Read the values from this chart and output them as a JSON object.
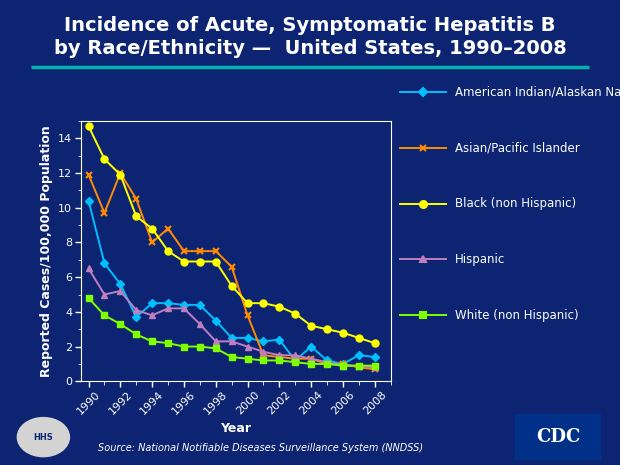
{
  "title_line1": "Incidence of Acute, Symptomatic Hepatitis B",
  "title_line2": "by Race/Ethnicity —  United States, 1990–2008",
  "xlabel": "Year",
  "ylabel": "Reported Cases/100,000 Population",
  "source": "Source: National Notifiable Diseases Surveillance System (NNDSS)",
  "background_color": "#0d2472",
  "plot_bg_color": "#0d2472",
  "title_color": "#ffffff",
  "axis_color": "#ffffff",
  "teal_line_color": "#00b0b0",
  "years": [
    1990,
    1991,
    1992,
    1993,
    1994,
    1995,
    1996,
    1997,
    1998,
    1999,
    2000,
    2001,
    2002,
    2003,
    2004,
    2005,
    2006,
    2007,
    2008
  ],
  "series": {
    "American Indian/Alaskan Native": {
      "color": "#00bfff",
      "marker": "D",
      "values": [
        10.4,
        6.8,
        5.6,
        3.7,
        4.5,
        4.5,
        4.4,
        4.4,
        3.5,
        2.5,
        2.5,
        2.3,
        2.4,
        1.2,
        2.0,
        1.2,
        1.0,
        1.5,
        1.4
      ]
    },
    "Asian/Pacific Islander": {
      "color": "#ff8c00",
      "marker": "x",
      "values": [
        11.9,
        9.7,
        12.0,
        10.5,
        8.0,
        8.8,
        7.5,
        7.5,
        7.5,
        6.6,
        3.8,
        1.5,
        1.4,
        1.3,
        1.3,
        1.0,
        1.0,
        0.8,
        0.7
      ]
    },
    "Black (non Hispanic)": {
      "color": "#ffff00",
      "marker": "o",
      "values": [
        14.7,
        12.8,
        11.9,
        9.5,
        8.8,
        7.5,
        6.9,
        6.9,
        6.9,
        5.5,
        4.5,
        4.5,
        4.3,
        3.9,
        3.2,
        3.0,
        2.8,
        2.5,
        2.2
      ]
    },
    "Hispanic": {
      "color": "#bf7fbf",
      "marker": "^",
      "values": [
        6.5,
        5.0,
        5.2,
        4.1,
        3.8,
        4.2,
        4.2,
        3.3,
        2.3,
        2.3,
        2.0,
        1.7,
        1.5,
        1.5,
        1.3,
        1.1,
        0.9,
        0.9,
        0.8
      ]
    },
    "White (non Hispanic)": {
      "color": "#7fff00",
      "marker": "s",
      "values": [
        4.8,
        3.8,
        3.3,
        2.7,
        2.3,
        2.2,
        2.0,
        2.0,
        1.9,
        1.4,
        1.3,
        1.2,
        1.2,
        1.1,
        1.0,
        1.0,
        0.9,
        0.9,
        0.9
      ]
    }
  },
  "ylim": [
    0,
    15
  ],
  "yticks": [
    0,
    2,
    4,
    6,
    8,
    10,
    12,
    14
  ],
  "xticks": [
    1990,
    1992,
    1994,
    1996,
    1998,
    2000,
    2002,
    2004,
    2006,
    2008
  ],
  "title_fontsize": 14,
  "axis_label_fontsize": 9,
  "tick_fontsize": 8,
  "legend_fontsize": 8.5
}
